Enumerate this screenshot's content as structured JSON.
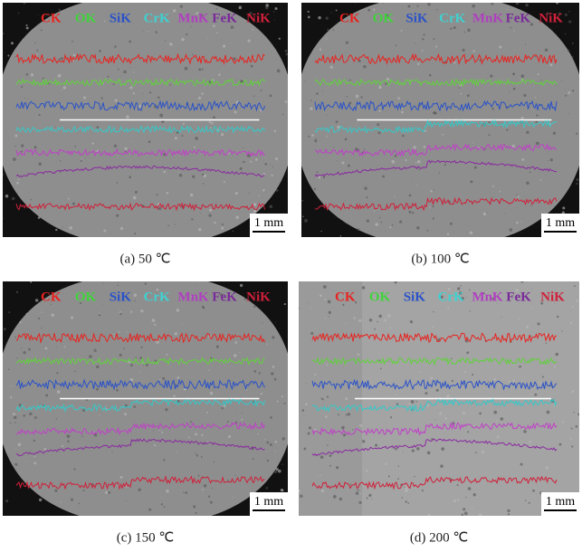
{
  "panels": [
    {
      "legend": [
        "CK",
        "OK",
        "SiK",
        "CrK",
        "MnK",
        "FeK",
        "NiK"
      ],
      "scale_bar": "1 mm",
      "caption": "(a) 50 ℃"
    },
    {
      "legend": [
        "CK",
        "OK",
        "SiK",
        "CrK",
        "MnK",
        "FeK",
        "NiK"
      ],
      "scale_bar": "1 mm",
      "caption": "(b) 100 ℃"
    },
    {
      "legend": [
        "CK",
        "OK",
        "SiK",
        "CrK",
        "MnK",
        "FeK",
        "NiK"
      ],
      "scale_bar": "1 mm",
      "caption": "(c) 150 ℃"
    },
    {
      "legend": [
        "CK",
        "OK",
        "SiK",
        "CrK",
        "MnK",
        "FeK",
        "NiK"
      ],
      "scale_bar": "1 mm",
      "caption": "(d) 200 ℃"
    }
  ]
}
